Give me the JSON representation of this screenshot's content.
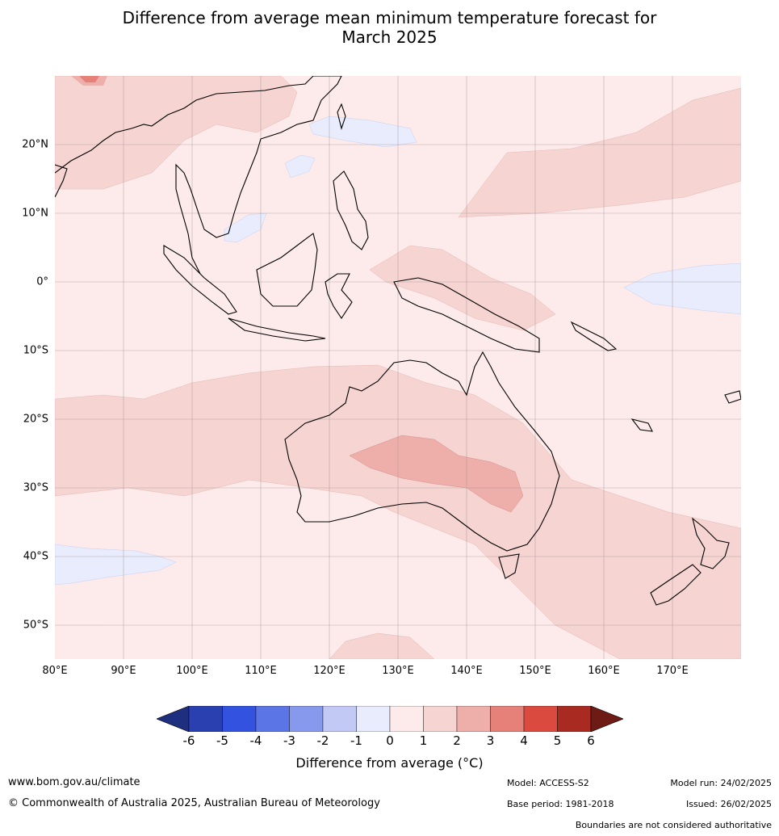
{
  "title_line1": "Difference from average mean minimum temperature forecast for",
  "title_line2": "March 2025",
  "map": {
    "lat_labels": [
      "20°N",
      "10°N",
      "0°",
      "10°S",
      "20°S",
      "30°S",
      "40°S",
      "50°S"
    ],
    "lon_labels": [
      "80°E",
      "90°E",
      "100°E",
      "110°E",
      "120°E",
      "130°E",
      "140°E",
      "150°E",
      "160°E",
      "170°E"
    ],
    "background_color": "#fcebea"
  },
  "colorbar": {
    "ticks": [
      "-6",
      "-5",
      "-4",
      "-3",
      "-2",
      "-1",
      "0",
      "1",
      "2",
      "3",
      "4",
      "5",
      "6"
    ],
    "colors": [
      "#1f2f7f",
      "#2a3fb0",
      "#3452e0",
      "#5b74e6",
      "#8799ec",
      "#c2c9f5",
      "#e8ecfc",
      "#fcebea",
      "#f5d4d1",
      "#eeaeaa",
      "#e6817a",
      "#da4a3f",
      "#a82a20",
      "#6f1b15"
    ],
    "label": "Difference from average (°C)"
  },
  "footer": {
    "website": "www.bom.gov.au/climate",
    "copyright": "© Commonwealth of Australia 2025, Australian Bureau of Meteorology",
    "model": "Model: ACCESS-S2",
    "base_period": "Base period: 1981-2018",
    "model_run": "Model run: 24/02/2025",
    "issued": "Issued: 26/02/2025",
    "disclaimer": "Boundaries are not considered authoritative"
  }
}
